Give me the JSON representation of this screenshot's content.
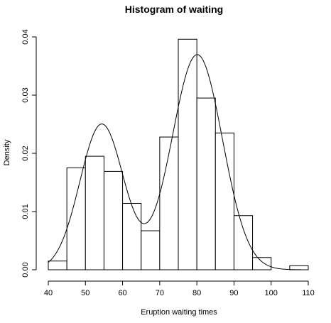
{
  "chart_data": {
    "type": "bar",
    "title": "Histogram of waiting",
    "xlabel": "Eruption waiting times",
    "ylabel": "Density",
    "xlim": [
      40,
      110
    ],
    "ylim": [
      0,
      0.04
    ],
    "x_ticks": [
      40,
      50,
      60,
      70,
      80,
      90,
      100,
      110
    ],
    "y_ticks": [
      0.0,
      0.01,
      0.02,
      0.03,
      0.04
    ],
    "y_tick_labels": [
      "0.00",
      "0.01",
      "0.02",
      "0.03",
      "0.04"
    ],
    "bin_edges": [
      40,
      45,
      50,
      55,
      60,
      65,
      70,
      75,
      80,
      85,
      90,
      95,
      100,
      105,
      110
    ],
    "values": [
      0.0015,
      0.0175,
      0.0195,
      0.0169,
      0.0114,
      0.0067,
      0.0228,
      0.0396,
      0.0295,
      0.0235,
      0.0093,
      0.0021,
      0.0,
      0.0007
    ],
    "density_curve": {
      "components": [
        {
          "weight": 0.37,
          "mean": 54.4,
          "sd": 5.9
        },
        {
          "weight": 0.63,
          "mean": 80.1,
          "sd": 6.8
        }
      ],
      "range": [
        40,
        110
      ]
    },
    "grid": false,
    "colors": {
      "bar_fill": "#ffffff",
      "stroke": "#000000",
      "background": "#ffffff"
    }
  }
}
